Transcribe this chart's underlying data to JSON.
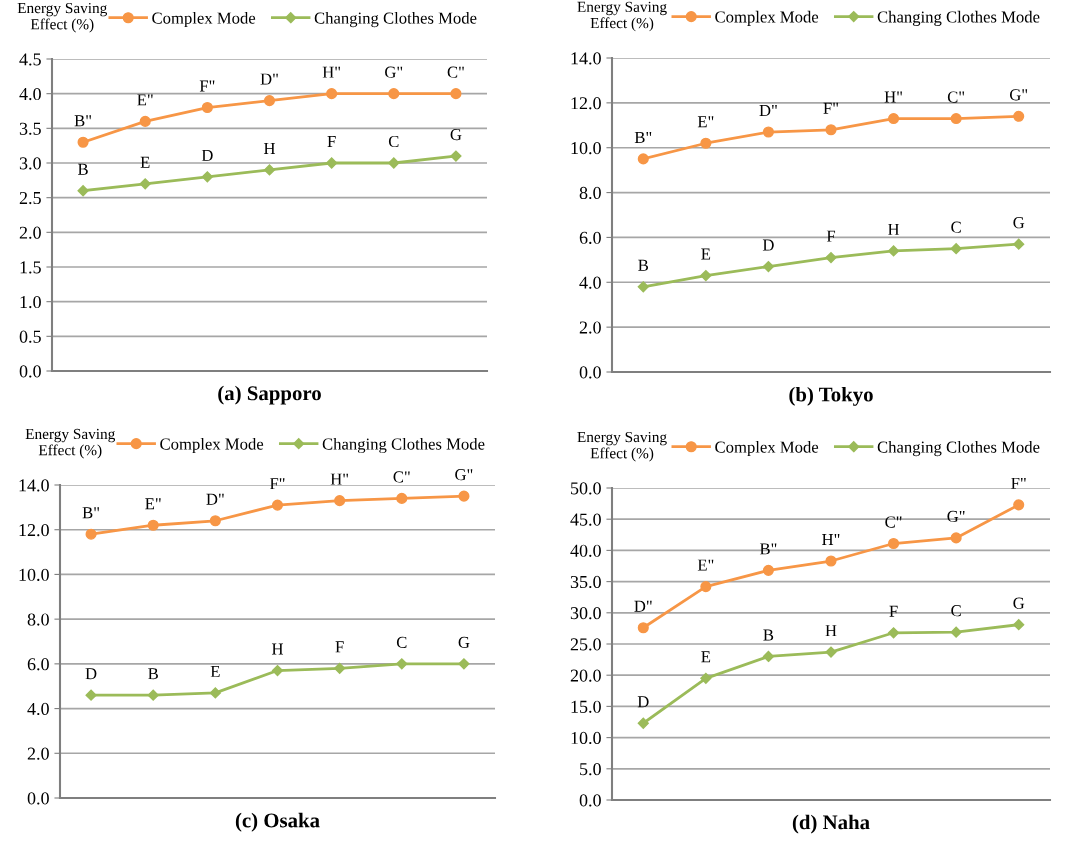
{
  "chart_data": [
    {
      "type": "line",
      "title": "(a) Sapporo",
      "ylabel": "Energy Saving\nEffect (%)",
      "categories": [
        null,
        null,
        null,
        null,
        null,
        null,
        null
      ],
      "ylim": [
        0,
        4.5
      ],
      "yticks": [
        {
          "value": 0,
          "label": "0.0"
        },
        {
          "value": 0.5,
          "label": "0.5"
        },
        {
          "value": 1,
          "label": "1.0"
        },
        {
          "value": 1.5,
          "label": "1.5"
        },
        {
          "value": 2,
          "label": "2.0"
        },
        {
          "value": 2.5,
          "label": "2.5"
        },
        {
          "value": 3,
          "label": "3.0"
        },
        {
          "value": 3.5,
          "label": "3.5"
        },
        {
          "value": 4,
          "label": "4.0"
        },
        {
          "value": 4.5,
          "label": "4.5"
        }
      ],
      "grid": "y",
      "legend": "top right",
      "tick_labels": "y",
      "line_style": "solid",
      "series": [
        {
          "name": "Complex Mode",
          "color": "#f79646",
          "marker": "circle",
          "values": [
            3.3,
            3.6,
            3.8,
            3.9,
            4.0,
            4.0,
            4.0
          ],
          "value_labels": [
            "B\"",
            "E\"",
            "F\"",
            "D\"",
            "H\"",
            "G\"",
            "C\""
          ]
        },
        {
          "name": "Changing Clothes Mode",
          "color": "#9bbb59",
          "marker": "diamond",
          "values": [
            2.6,
            2.7,
            2.8,
            2.9,
            3.0,
            3.0,
            3.1
          ],
          "value_labels": [
            "B",
            "E",
            "D",
            "H",
            "F",
            "C",
            "G"
          ]
        }
      ]
    },
    {
      "type": "line",
      "title": "(b) Tokyo",
      "ylabel": "Energy Saving\nEffect (%)",
      "categories": [
        null,
        null,
        null,
        null,
        null,
        null,
        null
      ],
      "ylim": [
        0,
        14
      ],
      "yticks": [
        {
          "value": 0,
          "label": "0.0"
        },
        {
          "value": 2,
          "label": "2.0"
        },
        {
          "value": 4,
          "label": "4.0"
        },
        {
          "value": 6,
          "label": "6.0"
        },
        {
          "value": 8,
          "label": "8.0"
        },
        {
          "value": 10,
          "label": "10.0"
        },
        {
          "value": 12,
          "label": "12.0"
        },
        {
          "value": 14,
          "label": "14.0"
        }
      ],
      "grid": "y",
      "legend": "top right",
      "tick_labels": "y",
      "line_style": "solid",
      "series": [
        {
          "name": "Complex Mode",
          "color": "#f79646",
          "marker": "circle",
          "values": [
            9.5,
            10.2,
            10.7,
            10.8,
            11.3,
            11.3,
            11.4
          ],
          "value_labels": [
            "B\"",
            "E\"",
            "D\"",
            "F\"",
            "H\"",
            "C\"",
            "G\""
          ]
        },
        {
          "name": "Changing Clothes Mode",
          "color": "#9bbb59",
          "marker": "diamond",
          "values": [
            3.8,
            4.3,
            4.7,
            5.1,
            5.4,
            5.5,
            5.7
          ],
          "value_labels": [
            "B",
            "E",
            "D",
            "F",
            "H",
            "C",
            "G"
          ]
        }
      ]
    },
    {
      "type": "line",
      "title": "(c) Osaka",
      "ylabel": "Energy Saving\nEffect (%)",
      "categories": [
        null,
        null,
        null,
        null,
        null,
        null,
        null
      ],
      "ylim": [
        0,
        14
      ],
      "yticks": [
        {
          "value": 0,
          "label": "0.0"
        },
        {
          "value": 2,
          "label": "2.0"
        },
        {
          "value": 4,
          "label": "4.0"
        },
        {
          "value": 6,
          "label": "6.0"
        },
        {
          "value": 8,
          "label": "8.0"
        },
        {
          "value": 10,
          "label": "10.0"
        },
        {
          "value": 12,
          "label": "12.0"
        },
        {
          "value": 14,
          "label": "14.0"
        }
      ],
      "grid": "y",
      "legend": "top right",
      "tick_labels": "y",
      "line_style": "solid",
      "series": [
        {
          "name": "Complex Mode",
          "color": "#f79646",
          "marker": "circle",
          "values": [
            11.8,
            12.2,
            12.4,
            13.1,
            13.3,
            13.4,
            13.5
          ],
          "value_labels": [
            "B\"",
            "E\"",
            "D\"",
            "F\"",
            "H\"",
            "C\"",
            "G\""
          ]
        },
        {
          "name": "Changing Clothes Mode",
          "color": "#9bbb59",
          "marker": "diamond",
          "values": [
            4.6,
            4.6,
            4.7,
            5.7,
            5.8,
            6.0,
            6.0
          ],
          "value_labels": [
            "D",
            "B",
            "E",
            "H",
            "F",
            "C",
            "G"
          ]
        }
      ]
    },
    {
      "type": "line",
      "title": "(d) Naha",
      "ylabel": "Energy Saving\nEffect (%)",
      "categories": [
        null,
        null,
        null,
        null,
        null,
        null,
        null
      ],
      "ylim": [
        0,
        50
      ],
      "yticks": [
        {
          "value": 0,
          "label": "0.0"
        },
        {
          "value": 5,
          "label": "5.0"
        },
        {
          "value": 10,
          "label": "10.0"
        },
        {
          "value": 15,
          "label": "15.0"
        },
        {
          "value": 20,
          "label": "20.0"
        },
        {
          "value": 25,
          "label": "25.0"
        },
        {
          "value": 30,
          "label": "30.0"
        },
        {
          "value": 35,
          "label": "35.0"
        },
        {
          "value": 40,
          "label": "40.0"
        },
        {
          "value": 45,
          "label": "45.0"
        },
        {
          "value": 50,
          "label": "50.0"
        }
      ],
      "grid": "y",
      "legend": "top right",
      "tick_labels": "y",
      "line_style": "solid",
      "series": [
        {
          "name": "Complex Mode",
          "color": "#f79646",
          "marker": "circle",
          "values": [
            27.6,
            34.2,
            36.8,
            38.3,
            41.1,
            42.0,
            47.3
          ],
          "value_labels": [
            "D\"",
            "E\"",
            "B\"",
            "H\"",
            "C\"",
            "G\"",
            "F\""
          ]
        },
        {
          "name": "Changing Clothes Mode",
          "color": "#9bbb59",
          "marker": "diamond",
          "values": [
            12.3,
            19.5,
            23.0,
            23.7,
            26.8,
            26.9,
            28.1
          ],
          "value_labels": [
            "D",
            "E",
            "B",
            "H",
            "F",
            "C",
            "G"
          ]
        }
      ]
    }
  ]
}
